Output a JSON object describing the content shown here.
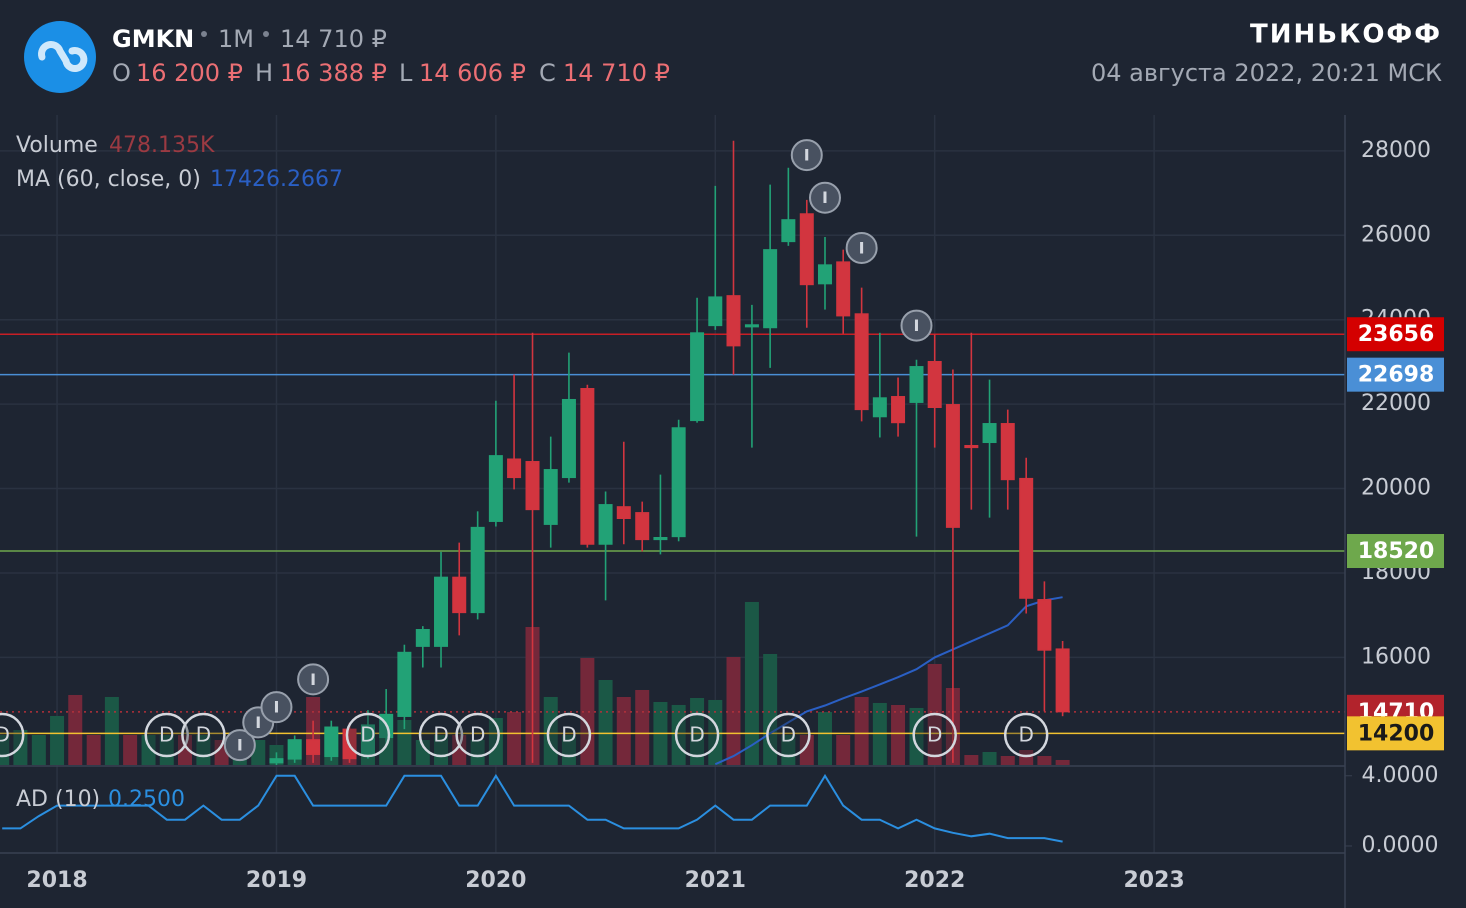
{
  "header": {
    "ticker": "GMKN",
    "interval": "1M",
    "price": "14 710 ₽",
    "ohlc": [
      {
        "label": "O",
        "value": "16 200 ₽"
      },
      {
        "label": "H",
        "value": "16 388 ₽"
      },
      {
        "label": "L",
        "value": "14 606 ₽"
      },
      {
        "label": "C",
        "value": "14 710 ₽"
      }
    ],
    "brand": "ТИНЬКОФФ",
    "datetime": "04 августа 2022, 20:21 МСК"
  },
  "chart_data": {
    "type": "candlestick",
    "x": [
      2017.75,
      2017.833,
      2017.917,
      2018,
      2018.083,
      2018.167,
      2018.25,
      2018.333,
      2018.417,
      2018.5,
      2018.583,
      2018.667,
      2018.75,
      2018.833,
      2018.917,
      2019,
      2019.083,
      2019.167,
      2019.25,
      2019.333,
      2019.417,
      2019.5,
      2019.583,
      2019.667,
      2019.75,
      2019.833,
      2019.917,
      2020,
      2020.083,
      2020.167,
      2020.25,
      2020.333,
      2020.417,
      2020.5,
      2020.583,
      2020.667,
      2020.75,
      2020.833,
      2020.917,
      2021,
      2021.083,
      2021.167,
      2021.25,
      2021.333,
      2021.417,
      2021.5,
      2021.583,
      2021.667,
      2021.75,
      2021.833,
      2021.917,
      2022,
      2022.083,
      2022.167,
      2022.25,
      2022.333,
      2022.417,
      2022.5,
      2022.583
    ],
    "open": [
      null,
      null,
      null,
      null,
      null,
      null,
      null,
      null,
      null,
      null,
      null,
      null,
      null,
      null,
      null,
      13500,
      13590,
      14050,
      13650,
      14300,
      13700,
      14100,
      14600,
      16260,
      16260,
      17900,
      17060,
      19220,
      20700,
      20640,
      19150,
      20260,
      22370,
      18680,
      19570,
      19430,
      18790,
      18860,
      21610,
      23860,
      24570,
      23830,
      23810,
      25850,
      26510,
      24850,
      25370,
      24140,
      21700,
      22180,
      22040,
      23010,
      21990,
      21020,
      21090,
      21540,
      20240,
      17370,
      16200
    ],
    "high": [
      null,
      null,
      null,
      null,
      null,
      null,
      null,
      null,
      null,
      null,
      null,
      null,
      null,
      null,
      null,
      13750,
      14150,
      14500,
      14500,
      14450,
      14750,
      15250,
      16300,
      16740,
      18500,
      18720,
      19460,
      22080,
      22700,
      23690,
      21230,
      23220,
      22460,
      19930,
      21110,
      19690,
      20330,
      21630,
      24520,
      27170,
      28240,
      24350,
      27200,
      27600,
      26840,
      25960,
      25660,
      24760,
      23690,
      22630,
      23050,
      23650,
      22820,
      23690,
      22580,
      21870,
      20730,
      17800,
      16388
    ],
    "low": [
      null,
      null,
      null,
      null,
      null,
      null,
      null,
      null,
      null,
      null,
      null,
      null,
      null,
      null,
      null,
      13450,
      13500,
      13500,
      13550,
      13500,
      13600,
      13900,
      14300,
      15760,
      15760,
      16520,
      16900,
      19100,
      19980,
      13500,
      18600,
      20140,
      18600,
      17350,
      18680,
      18510,
      18440,
      18750,
      21560,
      23760,
      22700,
      20970,
      22860,
      25750,
      23810,
      24240,
      23670,
      21590,
      21210,
      21230,
      18860,
      20970,
      13500,
      19500,
      19310,
      19500,
      17040,
      14720,
      14606
    ],
    "close": [
      null,
      null,
      null,
      null,
      null,
      null,
      null,
      null,
      null,
      null,
      null,
      null,
      null,
      null,
      null,
      13600,
      14050,
      13700,
      14350,
      13600,
      14400,
      14650,
      16120,
      16660,
      17900,
      17060,
      19080,
      20780,
      20260,
      19500,
      20450,
      22110,
      18680,
      19620,
      19290,
      18790,
      18840,
      21440,
      23690,
      24540,
      23380,
      23880,
      25660,
      26370,
      24830,
      25300,
      24090,
      21870,
      22150,
      21560,
      22890,
      21920,
      19080,
      20970,
      21540,
      20210,
      17400,
      16170,
      14710
    ],
    "colors": {
      "up": "#22a276",
      "down": "#d2353f",
      "volume_up": "#1b5846",
      "volume_down": "#74283a"
    },
    "xlim": [
      2017.74,
      2023.87
    ],
    "xticks": [
      2018,
      2019,
      2020,
      2021,
      2022,
      2023
    ],
    "ylim": [
      13450,
      28850
    ],
    "yticks": [
      16000,
      18000,
      20000,
      22000,
      24000,
      26000,
      28000
    ],
    "grid": true,
    "volume": {
      "name": "Volume",
      "value_label": "478.135K",
      "ylim": [
        0,
        62000000
      ],
      "values": [
        2862000,
        3339000,
        2862000,
        4675000,
        6678000,
        2862000,
        6487000,
        2862000,
        2862000,
        2862000,
        2862000,
        2862000,
        2385000,
        1908000,
        2385000,
        1908000,
        2385000,
        6487000,
        3339000,
        2862000,
        3530000,
        4484000,
        4293000,
        2385000,
        2862000,
        2862000,
        2385000,
        4484000,
        5056000,
        13165000,
        6487000,
        2862000,
        10208000,
        8109000,
        6487000,
        7155000,
        6010000,
        5724000,
        6392000,
        6201000,
        10303000,
        15550000,
        10589000,
        2862000,
        2862000,
        5056000,
        2862000,
        6487000,
        5915000,
        5724000,
        5438000,
        9635000,
        7346000,
        954000,
        1240000,
        859000,
        1431000,
        859000,
        478135
      ],
      "rising": [
        true,
        true,
        true,
        true,
        false,
        false,
        true,
        false,
        true,
        true,
        false,
        true,
        false,
        true,
        true,
        true,
        true,
        false,
        true,
        false,
        true,
        true,
        true,
        true,
        true,
        false,
        true,
        true,
        false,
        false,
        true,
        true,
        false,
        true,
        false,
        false,
        true,
        true,
        true,
        true,
        false,
        true,
        true,
        true,
        false,
        true,
        false,
        false,
        true,
        false,
        true,
        false,
        false,
        false,
        true,
        false,
        false,
        false,
        false
      ]
    },
    "ma": {
      "name": "MA (60, close, 0)",
      "value_label": "17426.2667",
      "color": "#2a5fc4",
      "values": [
        null,
        null,
        null,
        null,
        null,
        null,
        null,
        null,
        null,
        null,
        null,
        null,
        null,
        null,
        null,
        null,
        null,
        null,
        null,
        null,
        null,
        null,
        null,
        null,
        null,
        null,
        null,
        null,
        null,
        null,
        null,
        null,
        null,
        null,
        null,
        null,
        null,
        null,
        null,
        13470,
        13660,
        13920,
        14200,
        14460,
        14720,
        14860,
        15030,
        15190,
        15360,
        15530,
        15720,
        16000,
        16190,
        16380,
        16570,
        16760,
        17210,
        17350,
        17426.2667
      ]
    },
    "levels": [
      {
        "value": 23656,
        "color": "#c81e25",
        "label_color": "#d40000"
      },
      {
        "value": 22698,
        "color": "#4a8fd6",
        "label_color": "#4a8fd6"
      },
      {
        "value": 18520,
        "color": "#6ea84c",
        "label_color": "#6ea84c"
      },
      {
        "value": 14710,
        "color": "#b2303a",
        "label_color": "#b2232c",
        "dashed": true
      },
      {
        "value": 14200,
        "color": "#f2c230",
        "label_color": "#f2c230",
        "dark_text": true
      }
    ],
    "events": [
      {
        "x": 2017.75,
        "label": "D"
      },
      {
        "x": 2018.5,
        "label": "D"
      },
      {
        "x": 2018.667,
        "label": "D"
      },
      {
        "x": 2019.417,
        "label": "D"
      },
      {
        "x": 2019.75,
        "label": "D"
      },
      {
        "x": 2019.917,
        "label": "D"
      },
      {
        "x": 2020.333,
        "label": "D"
      },
      {
        "x": 2020.917,
        "label": "D"
      },
      {
        "x": 2021.333,
        "label": "D"
      },
      {
        "x": 2022,
        "label": "D"
      },
      {
        "x": 2022.417,
        "label": "D"
      },
      {
        "x": 2018.833,
        "y": 13920,
        "label": "I"
      },
      {
        "x": 2018.917,
        "y": 14460,
        "label": "I"
      },
      {
        "x": 2019,
        "y": 14820,
        "label": "I"
      },
      {
        "x": 2019.167,
        "y": 15480,
        "label": "I"
      },
      {
        "x": 2021.417,
        "y": 27900,
        "label": "I"
      },
      {
        "x": 2021.5,
        "y": 26890,
        "label": "I"
      },
      {
        "x": 2021.667,
        "y": 25700,
        "label": "I"
      },
      {
        "x": 2021.917,
        "y": 23860,
        "label": "I"
      }
    ],
    "ad": {
      "name": "AD (10)",
      "value_label": "0.2500",
      "color": "#2b8fe0",
      "ylim": [
        -0.4,
        4.5
      ],
      "yticks": [
        {
          "value": 4,
          "label": "4.0000"
        },
        {
          "value": 0,
          "label": "0.0000"
        }
      ],
      "values": [
        1.0,
        1.0,
        1.7,
        2.3,
        2.3,
        2.3,
        2.3,
        2.3,
        2.3,
        1.5,
        1.5,
        2.3,
        1.5,
        1.5,
        2.3,
        4.0,
        4.0,
        2.3,
        2.3,
        2.3,
        2.3,
        2.3,
        4.0,
        4.0,
        4.0,
        2.3,
        2.3,
        4.0,
        2.3,
        2.3,
        2.3,
        2.3,
        1.5,
        1.5,
        1.0,
        1.0,
        1.0,
        1.0,
        1.5,
        2.3,
        1.5,
        1.5,
        2.3,
        2.3,
        2.3,
        4.0,
        2.3,
        1.5,
        1.5,
        1.0,
        1.5,
        1.0,
        0.75,
        0.55,
        0.7,
        0.45,
        0.45,
        0.45,
        0.25
      ]
    }
  }
}
